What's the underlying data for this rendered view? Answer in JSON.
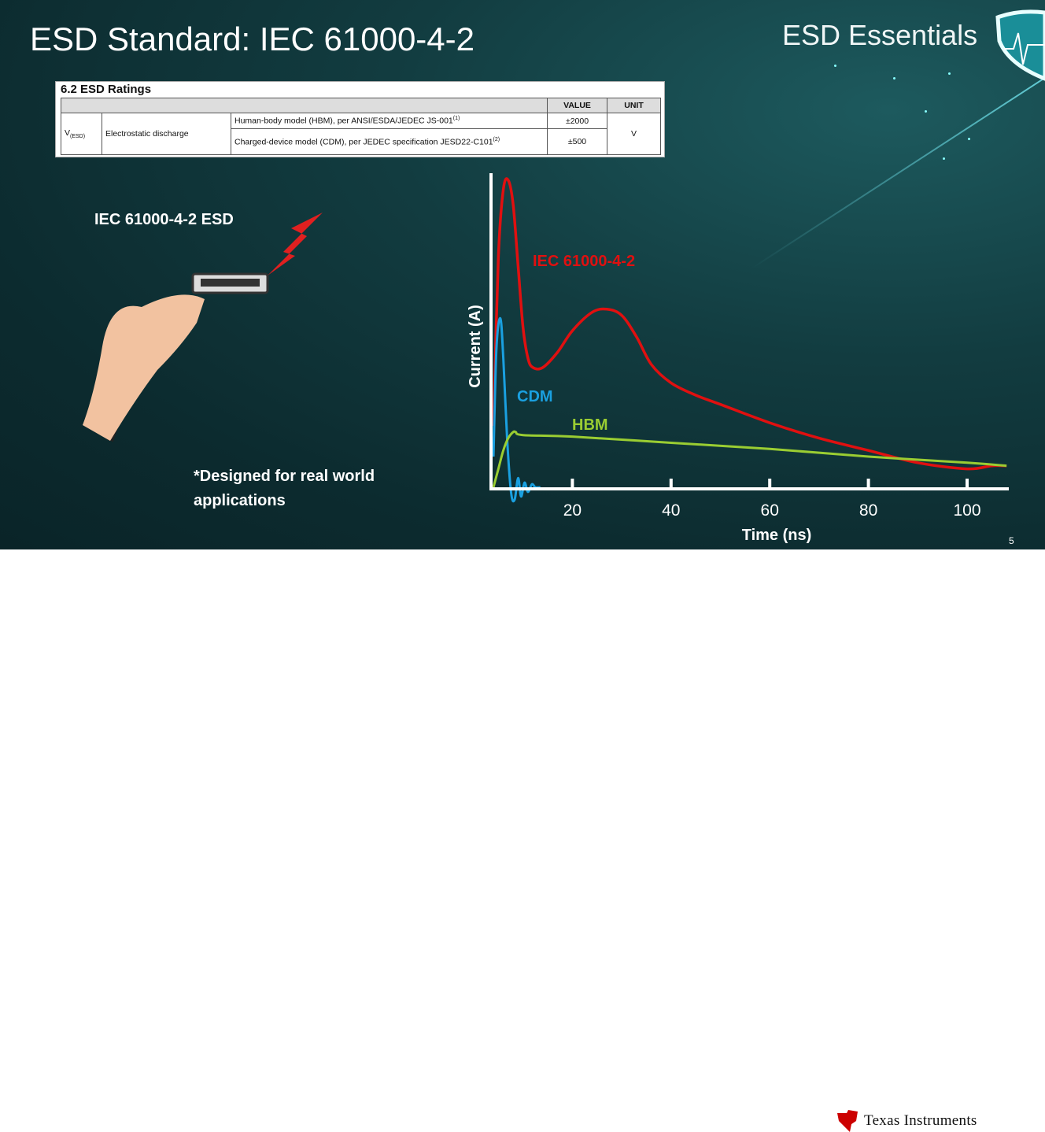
{
  "slide": {
    "title": "ESD Standard: IEC 61000-4-2",
    "brand": "ESD Essentials",
    "page_number": "5",
    "footer_logo": "Texas Instruments",
    "label": "IEC 61000-4-2 ESD",
    "note_line1": "*Designed for real world",
    "note_line2": "applications"
  },
  "table": {
    "caption": "6.2 ESD Ratings",
    "headers": [
      "VALUE",
      "UNIT"
    ],
    "symbol": "V",
    "symbol_sub": "(ESD)",
    "parameter": "Electrostatic discharge",
    "rows": [
      {
        "condition": "Human-body model (HBM), per ANSI/ESDA/JEDEC JS-001",
        "footnote": "(1)",
        "value": "±2000"
      },
      {
        "condition": "Charged-device model (CDM), per JEDEC specification JESD22-C101",
        "footnote": "(2)",
        "value": "±500"
      }
    ],
    "unit": "V"
  },
  "colors": {
    "iec": "#e01010",
    "cdm": "#1aa0e0",
    "hbm": "#9acd32",
    "background": "#0f3438"
  },
  "chart_data": {
    "type": "line",
    "xlabel": "Time (ns)",
    "ylabel": "Current (A)",
    "xticks": [
      20,
      40,
      60,
      80,
      100
    ],
    "xlim": [
      3.5,
      108
    ],
    "grid": false,
    "series": [
      {
        "name": "IEC 61000-4-2",
        "label_color": "#e01010",
        "x": [
          4,
          5,
          6,
          7,
          8,
          9,
          10,
          11,
          12,
          14,
          17,
          20,
          24,
          27,
          30,
          33,
          36,
          40,
          45,
          50,
          60,
          70,
          80,
          90,
          100,
          105,
          108
        ],
        "y": [
          0.2,
          0.75,
          0.97,
          1.0,
          0.92,
          0.72,
          0.52,
          0.42,
          0.39,
          0.39,
          0.44,
          0.51,
          0.57,
          0.58,
          0.56,
          0.49,
          0.4,
          0.34,
          0.3,
          0.27,
          0.21,
          0.16,
          0.12,
          0.08,
          0.06,
          0.07,
          0.07
        ]
      },
      {
        "name": "CDM",
        "x": [
          4,
          4.6,
          5.4,
          6,
          6.8,
          7.6,
          8.3,
          9,
          9.6,
          10.3,
          11,
          11.8,
          12.5,
          13.5
        ],
        "y": [
          0.1,
          0.45,
          0.55,
          0.42,
          0.15,
          -0.02,
          -0.04,
          0.03,
          -0.03,
          0.015,
          -0.015,
          0.01,
          0,
          0
        ]
      },
      {
        "name": "HBM",
        "x": [
          4,
          5,
          6,
          7,
          8,
          8.5,
          10,
          20,
          40,
          60,
          80,
          100,
          108
        ],
        "y": [
          0,
          0.06,
          0.12,
          0.16,
          0.18,
          0.18,
          0.17,
          0.165,
          0.145,
          0.125,
          0.1,
          0.08,
          0.07
        ]
      }
    ]
  }
}
